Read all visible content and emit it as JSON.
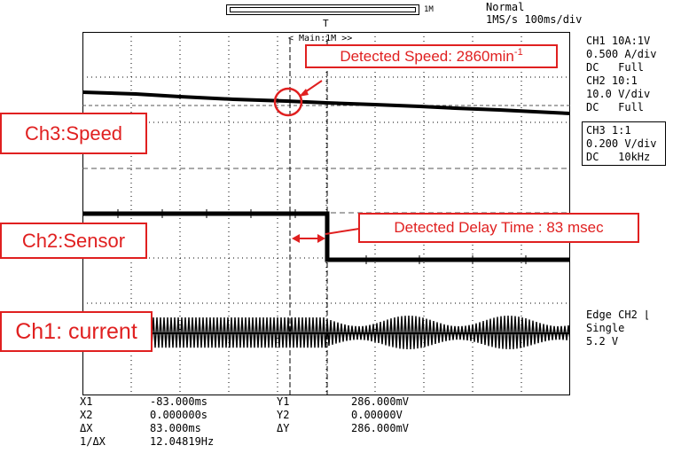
{
  "top": {
    "zoom_label": "1M",
    "mode": "Normal",
    "rate": "1MS/s 100ms/div",
    "main_tag": "< Main:1M >>"
  },
  "channels": [
    {
      "title": "CH1 10A:1V",
      "scale": "0.500 A/div",
      "coupling": "DC   Full"
    },
    {
      "title": "CH2 10:1",
      "scale": "10.0 V/div",
      "coupling": "DC   Full"
    },
    {
      "title": "CH3 1:1",
      "scale": "0.200 V/div",
      "coupling": "DC   10kHz"
    }
  ],
  "trigger": {
    "type": "Edge CH2",
    "slope_icon": "falling-edge-icon",
    "mode": "Single",
    "level": "5.2 V"
  },
  "annotations": {
    "speed_label": "Ch3:Speed",
    "sensor_label": "Ch2:Sensor",
    "current_label": "Ch1: current",
    "detected_speed": "Detected Speed: 2860min",
    "detected_speed_sup": "-1",
    "detected_delay": "Detected Delay Time : 83 msec",
    "accent": "#e02020"
  },
  "cursors": {
    "x1_label": "X1",
    "x1": "-83.000ms",
    "x2_label": "X2",
    "x2": "0.000000s",
    "dx_label": "ΔX",
    "dx": "83.000ms",
    "inv_dx_label": "1/ΔX",
    "inv_dx": "12.04819Hz",
    "y1_label": "Y1",
    "y1": "286.000mV",
    "y2_label": "Y2",
    "y2": "0.00000V",
    "dy_label": "ΔY",
    "dy": "286.000mV"
  }
}
